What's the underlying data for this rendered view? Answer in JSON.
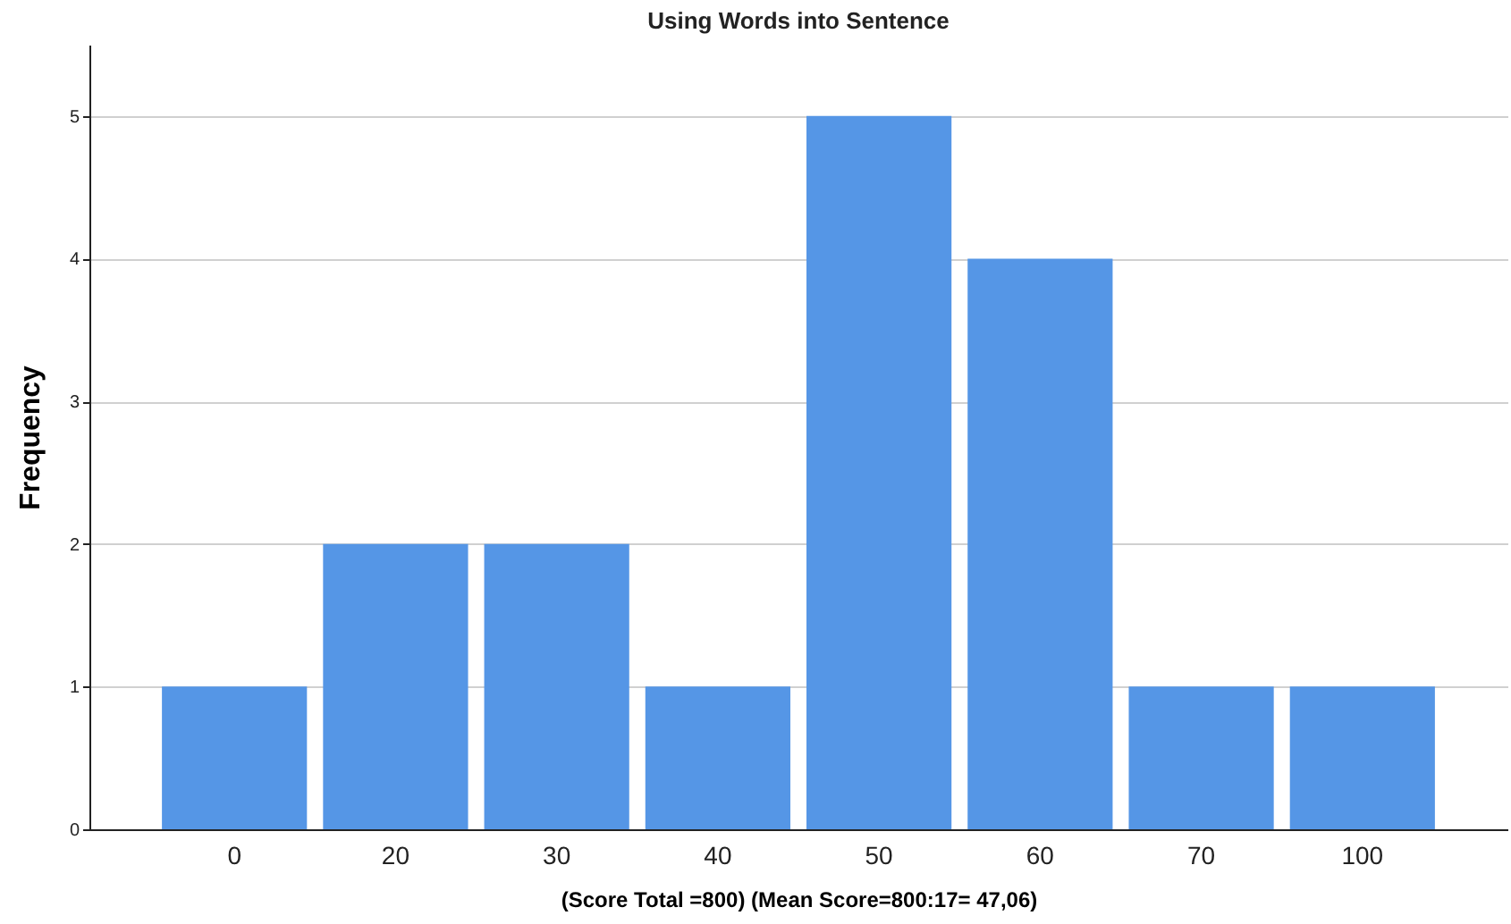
{
  "chart_data": {
    "type": "bar",
    "title": "Using Words into Sentence",
    "xlabel": "(Score Total =800)  (Mean Score=800:17= 47,06)",
    "ylabel": "Frequency",
    "categories": [
      "0",
      "20",
      "30",
      "40",
      "50",
      "60",
      "70",
      "100"
    ],
    "values": [
      1,
      2,
      2,
      1,
      5,
      4,
      1,
      1
    ],
    "color": "#5596e6",
    "ylim": [
      0,
      5.5
    ],
    "yticks": [
      0,
      1,
      2,
      3,
      4,
      5
    ],
    "grid": "y"
  }
}
